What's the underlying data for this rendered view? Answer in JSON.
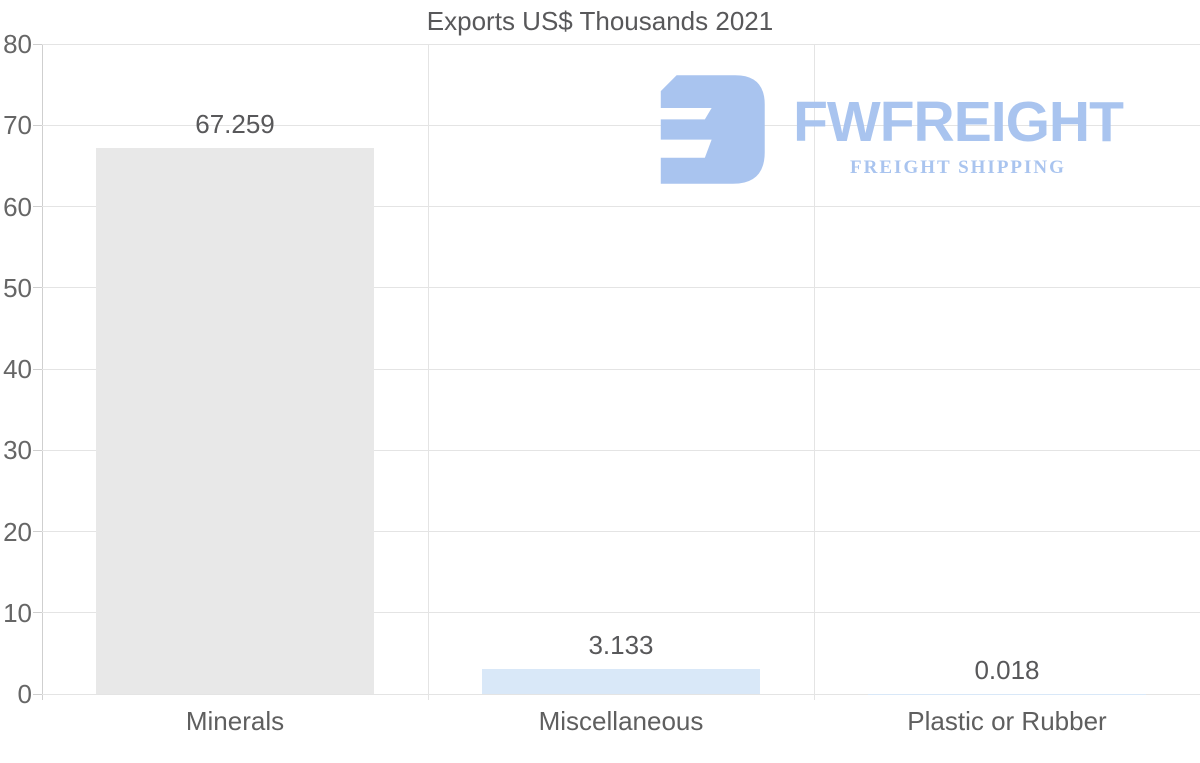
{
  "title": "Exports US$ Thousands 2021",
  "logo": {
    "brand": "FWFREIGHT",
    "tagline": "FREIGHT SHIPPING",
    "color": "#a9c4ef"
  },
  "colors": {
    "bar_gray": "#e8e8e8",
    "bar_blue": "#d9e8f8",
    "gridline": "#e4e4e4",
    "axis_line": "#cfcfcf",
    "text_gray": "#58585a",
    "tick_text": "#666666",
    "logo_blue": "#a9c4ef"
  },
  "chart_data": {
    "type": "bar",
    "title": "Exports US$ Thousands 2021",
    "categories": [
      "Minerals",
      "Miscellaneous",
      "Plastic or Rubber"
    ],
    "values": [
      67.259,
      3.133,
      0.018
    ],
    "value_labels": [
      "67.259",
      "3.133",
      "0.018"
    ],
    "bar_colors": [
      "#e8e8e8",
      "#d9e8f8",
      "#d9e8f8"
    ],
    "xlabel": "",
    "ylabel": "",
    "ylim": [
      0,
      80
    ],
    "yticks": [
      0,
      10,
      20,
      30,
      40,
      50,
      60,
      70,
      80
    ],
    "grid": true,
    "legend": "none"
  }
}
